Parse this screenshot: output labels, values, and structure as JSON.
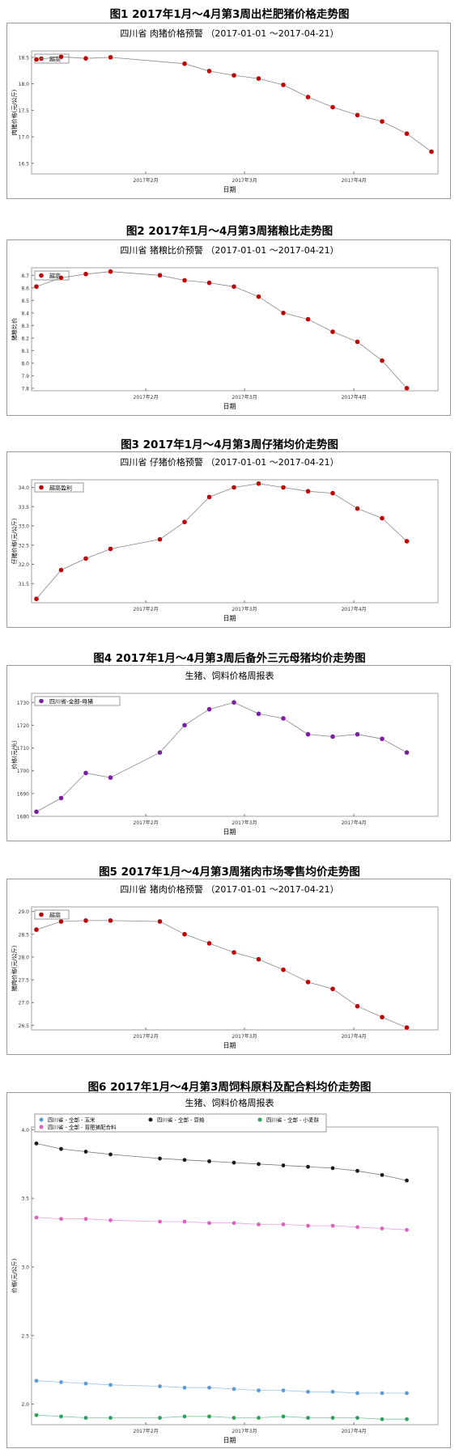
{
  "chart_data": [
    {
      "type": "line",
      "figure_title": "图1 2017年1月～4月第3周出栏肥猪价格走势图",
      "title": "四川省 肉猪价格预警 （2017-01-01 ～2017-04-21）",
      "ylabel": "肉猪价格(元/公斤)",
      "xlabel": "日期",
      "yticks": [
        "16.5",
        "17.0",
        "17.5",
        "18.0",
        "18.5"
      ],
      "ylim": [
        16.3,
        18.62
      ],
      "xticks": [
        "2017年2月",
        "2017年3月",
        "2017年4月"
      ],
      "series": [
        {
          "name": "超高",
          "color": "#c00000",
          "x": [
            0,
            7,
            14,
            21,
            42,
            49,
            56,
            63,
            70,
            77,
            84,
            91,
            98,
            105,
            112
          ],
          "values": [
            18.46,
            18.51,
            18.48,
            18.5,
            18.38,
            18.24,
            18.16,
            18.1,
            17.98,
            17.75,
            17.56,
            17.41,
            17.29,
            17.06,
            16.72
          ]
        }
      ]
    },
    {
      "type": "line",
      "figure_title": "图2 2017年1月～4月第3周猪粮比走势图",
      "title": "四川省 猪粮比价预警 （2017-01-01 ～2017-04-21）",
      "ylabel": "猪粮比价",
      "xlabel": "日期",
      "yticks": [
        "7.8",
        "7.9",
        "8.0",
        "8.1",
        "8.2",
        "8.3",
        "8.4",
        "8.5",
        "8.6",
        "8.7"
      ],
      "ylim": [
        7.78,
        8.76
      ],
      "xticks": [
        "2017年2月",
        "2017年3月",
        "2017年4月"
      ],
      "series": [
        {
          "name": "超高",
          "color": "#c00000",
          "x": [
            0,
            7,
            14,
            21,
            35,
            42,
            49,
            56,
            63,
            70,
            77,
            84,
            91,
            98,
            105
          ],
          "values": [
            8.61,
            8.68,
            8.71,
            8.73,
            8.7,
            8.66,
            8.64,
            8.61,
            8.53,
            8.4,
            8.35,
            8.25,
            8.17,
            8.02,
            7.8
          ]
        }
      ]
    },
    {
      "type": "line",
      "figure_title": "图3 2017年1月～4月第3周仔猪均价走势图",
      "title": "四川省 仔猪价格预警 （2017-01-01 ～2017-04-21）",
      "ylabel": "仔猪价格(元/公斤)",
      "xlabel": "日期",
      "yticks": [
        "31.5",
        "32.0",
        "32.5",
        "33.0",
        "33.5",
        "34.0"
      ],
      "ylim": [
        31.0,
        34.2
      ],
      "xticks": [
        "2017年2月",
        "2017年3月",
        "2017年4月"
      ],
      "series": [
        {
          "name": "超高盈利",
          "color": "#c00000",
          "x": [
            0,
            7,
            14,
            21,
            35,
            42,
            49,
            56,
            63,
            70,
            77,
            84,
            91,
            98,
            105
          ],
          "values": [
            31.1,
            31.85,
            32.15,
            32.4,
            32.65,
            33.1,
            33.75,
            34.0,
            34.1,
            34.0,
            33.9,
            33.85,
            33.45,
            33.2,
            32.6
          ]
        }
      ]
    },
    {
      "type": "line",
      "figure_title": "图4 2017年1月～4月第3周后备外三元母猪均价走势图",
      "title": "生猪、饲料价格周报表",
      "ylabel": "价格(元/头)",
      "xlabel": "日期",
      "yticks": [
        "1680",
        "1690",
        "1700",
        "1710",
        "1720",
        "1730"
      ],
      "ylim": [
        1680,
        1734
      ],
      "xticks": [
        "2017年2月",
        "2017年3月",
        "2017年4月"
      ],
      "series": [
        {
          "name": "四川省-全部-母猪",
          "color": "#7a1fa2",
          "x": [
            0,
            7,
            14,
            21,
            35,
            42,
            49,
            56,
            63,
            70,
            77,
            84,
            91,
            98,
            105
          ],
          "values": [
            1682,
            1688,
            1699,
            1697,
            1708,
            1720,
            1727,
            1730,
            1725,
            1723,
            1716,
            1715,
            1716,
            1714,
            1708
          ]
        }
      ]
    },
    {
      "type": "line",
      "figure_title": "图5 2017年1月～4月第3周猪肉市场零售均价走势图",
      "title": "四川省 猪肉价格预警 （2017-01-01 ～2017-04-21）",
      "ylabel": "猪肉价格(元/公斤)",
      "xlabel": "日期",
      "yticks": [
        "26.5",
        "27.0",
        "27.5",
        "28.0",
        "28.5",
        "29.0"
      ],
      "ylim": [
        26.4,
        29.1
      ],
      "xticks": [
        "2017年2月",
        "2017年3月",
        "2017年4月"
      ],
      "series": [
        {
          "name": "超高",
          "color": "#c00000",
          "x": [
            0,
            7,
            14,
            21,
            35,
            42,
            49,
            56,
            63,
            70,
            77,
            84,
            91,
            98,
            105
          ],
          "values": [
            28.6,
            28.78,
            28.8,
            28.8,
            28.78,
            28.5,
            28.3,
            28.1,
            27.95,
            27.72,
            27.45,
            27.3,
            26.92,
            26.68,
            26.45
          ]
        }
      ]
    },
    {
      "type": "line",
      "figure_title": "图6 2017年1月～4月第3周饲料原料及配合料均价走势图",
      "title": "生猪、饲料价格周报表",
      "ylabel": "价格(元/公斤)",
      "xlabel": "日期",
      "yticks": [
        "2.0",
        "2.5",
        "3.0",
        "3.5",
        "4.0"
      ],
      "ylim": [
        1.85,
        4.02
      ],
      "xticks": [
        "2017年2月",
        "2017年3月",
        "2017年4月"
      ],
      "series": [
        {
          "name": "四川省 - 全部 - 玉米",
          "color": "#5b9bd5",
          "x": [
            0,
            7,
            14,
            21,
            35,
            42,
            49,
            56,
            63,
            70,
            77,
            84,
            91,
            98,
            105
          ],
          "values": [
            2.17,
            2.16,
            2.15,
            2.14,
            2.13,
            2.12,
            2.12,
            2.11,
            2.1,
            2.1,
            2.09,
            2.09,
            2.08,
            2.08,
            2.08
          ]
        },
        {
          "name": "四川省 - 全部 - 豆粕",
          "color": "#1a1a1a",
          "x": [
            0,
            7,
            14,
            21,
            35,
            42,
            49,
            56,
            63,
            70,
            77,
            84,
            91,
            98,
            105
          ],
          "values": [
            3.9,
            3.86,
            3.84,
            3.82,
            3.79,
            3.78,
            3.77,
            3.76,
            3.75,
            3.74,
            3.73,
            3.72,
            3.7,
            3.67,
            3.63
          ]
        },
        {
          "name": "四川省 - 全部 - 小麦麸",
          "color": "#2ca05a",
          "x": [
            0,
            7,
            14,
            21,
            35,
            42,
            49,
            56,
            63,
            70,
            77,
            84,
            91,
            98,
            105
          ],
          "values": [
            1.92,
            1.91,
            1.9,
            1.9,
            1.9,
            1.91,
            1.91,
            1.9,
            1.9,
            1.91,
            1.9,
            1.9,
            1.9,
            1.89,
            1.89
          ]
        },
        {
          "name": "四川省 - 全部 - 育肥猪配合料",
          "color": "#e060c0",
          "x": [
            0,
            7,
            14,
            21,
            35,
            42,
            49,
            56,
            63,
            70,
            77,
            84,
            91,
            98,
            105
          ],
          "values": [
            3.36,
            3.35,
            3.35,
            3.34,
            3.33,
            3.33,
            3.32,
            3.32,
            3.31,
            3.31,
            3.3,
            3.3,
            3.29,
            3.28,
            3.27
          ]
        }
      ]
    }
  ]
}
